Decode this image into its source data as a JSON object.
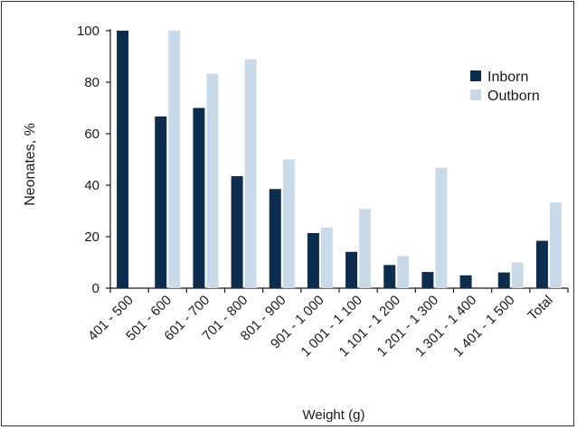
{
  "chart_data": {
    "type": "bar",
    "title": "",
    "xlabel": "Weight (g)",
    "ylabel": "Neonates, %",
    "ylim": [
      0,
      100
    ],
    "yticks": [
      0,
      20,
      40,
      60,
      80,
      100
    ],
    "grid": false,
    "legend_position": "top-right",
    "categories": [
      "401 - 500",
      "501 - 600",
      "601 - 700",
      "701 - 800",
      "801 - 900",
      "901 - 1 000",
      "1 001 - 1 100",
      "1 101 - 1 200",
      "1 201 - 1 300",
      "1 301 - 1 400",
      "1 401 - 1 500",
      "Total"
    ],
    "series": [
      {
        "name": "Inborn",
        "color": "#0d2d4f",
        "values": [
          100,
          66.7,
          70,
          43.5,
          38.5,
          21.4,
          14.1,
          9,
          6.3,
          5,
          6.1,
          18.4
        ]
      },
      {
        "name": "Outborn",
        "color": "#c8dae8",
        "values": [
          0,
          100,
          83.3,
          88.9,
          50,
          23.5,
          30.8,
          12.5,
          46.7,
          0,
          10,
          33.3
        ]
      }
    ]
  }
}
